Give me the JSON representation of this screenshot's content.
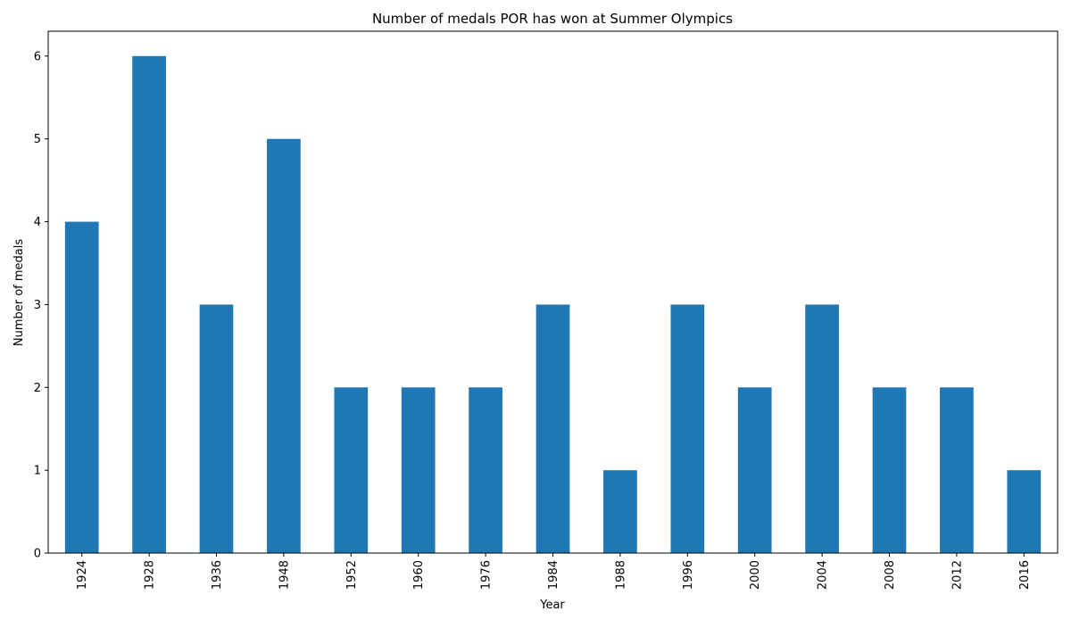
{
  "chart_data": {
    "type": "bar",
    "title": "Number of medals POR has won at Summer Olympics",
    "xlabel": "Year",
    "ylabel": "Number of medals",
    "categories": [
      "1924",
      "1928",
      "1936",
      "1948",
      "1952",
      "1960",
      "1976",
      "1984",
      "1988",
      "1996",
      "2000",
      "2004",
      "2008",
      "2012",
      "2016"
    ],
    "values": [
      4,
      6,
      3,
      5,
      2,
      2,
      2,
      3,
      1,
      3,
      2,
      3,
      2,
      2,
      1
    ],
    "ylim": [
      0,
      6.3
    ],
    "yticks": [
      "0",
      "1",
      "2",
      "3",
      "4",
      "5",
      "6"
    ],
    "bar_color": "#1f77b4",
    "grid": false,
    "legend": "none"
  }
}
